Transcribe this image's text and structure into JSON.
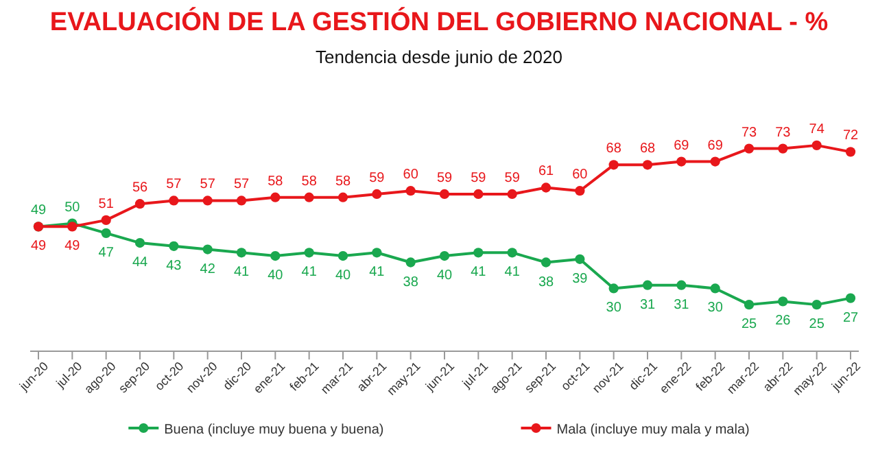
{
  "chart_data": {
    "type": "line",
    "title": "EVALUACIÓN DE LA GESTIÓN DEL GOBIERNO NACIONAL - %",
    "subtitle": "Tendencia desde junio de 2020",
    "categories": [
      "jun-20",
      "jul-20",
      "ago-20",
      "sep-20",
      "oct-20",
      "nov-20",
      "dic-20",
      "ene-21",
      "feb-21",
      "mar-21",
      "abr-21",
      "may-21",
      "jun-21",
      "jul-21",
      "ago-21",
      "sep-21",
      "oct-21",
      "nov-21",
      "dic-21",
      "ene-22",
      "feb-22",
      "mar-22",
      "abr-22",
      "may-22",
      "jun-22"
    ],
    "series": [
      {
        "name": "Buena (incluye muy buena y buena)",
        "color": "#1aa84f",
        "values": [
          49,
          50,
          47,
          44,
          43,
          42,
          41,
          40,
          41,
          40,
          41,
          38,
          40,
          41,
          41,
          38,
          39,
          30,
          31,
          31,
          30,
          25,
          26,
          25,
          27
        ]
      },
      {
        "name": "Mala (incluye muy mala y mala)",
        "color": "#e8171b",
        "values": [
          49,
          49,
          51,
          56,
          57,
          57,
          57,
          58,
          58,
          58,
          59,
          60,
          59,
          59,
          59,
          61,
          60,
          68,
          68,
          69,
          69,
          73,
          73,
          74,
          72
        ]
      }
    ],
    "data_labels": true,
    "marker": "circle",
    "legend": "bottom",
    "grid": false
  }
}
